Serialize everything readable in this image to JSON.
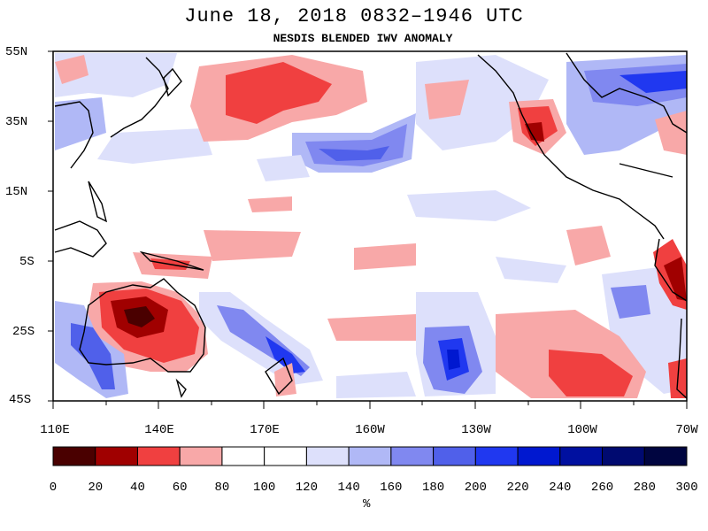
{
  "title": "June 18, 2018  0832–1946 UTC",
  "subtitle": "NESDIS BLENDED IWV ANOMALY",
  "lat_labels": [
    "55N",
    "35N",
    "15N",
    "5S",
    "25S",
    "45S"
  ],
  "lon_labels": [
    "110E",
    "140E",
    "170E",
    "160W",
    "130W",
    "100W",
    "70W"
  ],
  "colorbar": {
    "ticks": [
      "0",
      "20",
      "40",
      "60",
      "80",
      "100",
      "120",
      "140",
      "160",
      "180",
      "200",
      "220",
      "240",
      "260",
      "280",
      "300"
    ],
    "units": "%",
    "colors": [
      "#4a0000",
      "#a00000",
      "#f04040",
      "#f8a8a8",
      "#ffffff",
      "#ffffff",
      "#dde0fb",
      "#b0b8f6",
      "#8088f0",
      "#5060ea",
      "#2038f0",
      "#0018d0",
      "#0010a0",
      "#000a70",
      "#000540"
    ]
  },
  "extent": {
    "lon_min": 110,
    "lon_max": 290,
    "lat_min": -45,
    "lat_max": 55
  }
}
